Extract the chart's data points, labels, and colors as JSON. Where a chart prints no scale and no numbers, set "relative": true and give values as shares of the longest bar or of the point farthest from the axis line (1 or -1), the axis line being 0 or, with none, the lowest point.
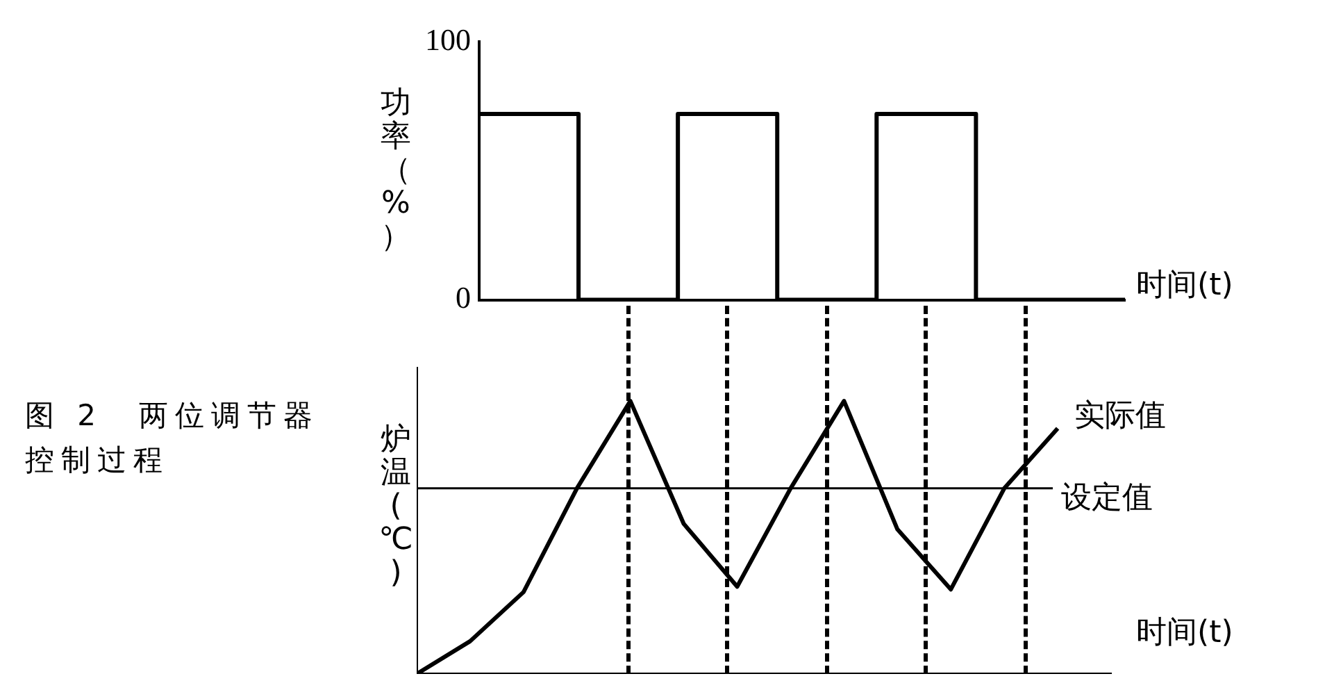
{
  "chart_data": [
    {
      "type": "step",
      "ylabel": "功率（%）",
      "xlabel": "时间(t)",
      "annotations": [
        "图 2　两位调节器控制过程"
      ],
      "categories": [
        null,
        null,
        null,
        null,
        null,
        null,
        null,
        null,
        null,
        null,
        null,
        null,
        null,
        null
      ],
      "values": [
        72,
        72,
        72,
        0,
        0,
        72,
        72,
        0,
        0,
        72,
        72,
        0,
        0,
        0
      ],
      "color": "#000000",
      "ylim": [
        0,
        100
      ],
      "yticks": [
        0,
        100
      ],
      "tick_labels": "y",
      "grid": false
    },
    {
      "type": "line",
      "ylabel": "炉温(℃)",
      "xlabel": "时间(t)",
      "relative": true,
      "categories": [
        null,
        null,
        null,
        null,
        null,
        null,
        null,
        null,
        null,
        null,
        null,
        null,
        null,
        null
      ],
      "series": [
        {
          "name": "实际值",
          "color": "#000000",
          "values": [
            0,
            0.12,
            0.3,
            0.68,
            1,
            0.55,
            0.32,
            0.68,
            1,
            0.53,
            0.31,
            0.68,
            0.9,
            null
          ]
        }
      ],
      "ref_lines": [
        {
          "axis": "y",
          "value": 0.68,
          "label": "设定值"
        }
      ],
      "tick_labels": false,
      "grid": false
    }
  ]
}
